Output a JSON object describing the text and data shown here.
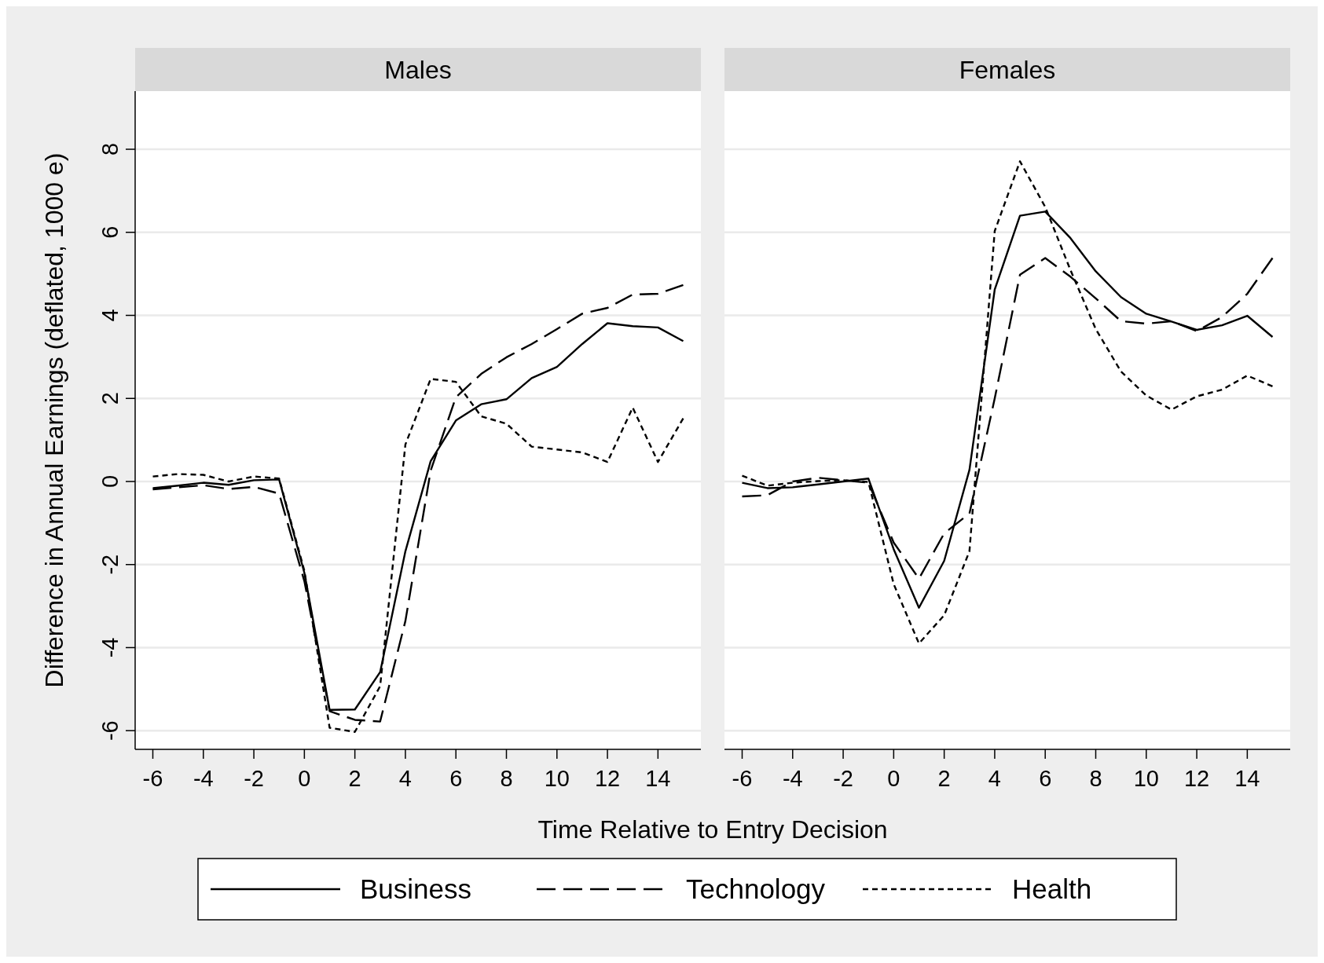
{
  "chart_data": [
    {
      "type": "line",
      "title": "Males",
      "ylabel": "Difference in Annual Earnings (deflated, 1000 e)",
      "xlabel": "Time Relative to Entry Decision",
      "x": [
        -6,
        -5,
        -4,
        -3,
        -2,
        -1,
        0,
        1,
        2,
        3,
        4,
        5,
        6,
        7,
        8,
        9,
        10,
        11,
        12,
        13,
        14,
        15
      ],
      "xlim": [
        -6.7,
        15.7
      ],
      "xticks": [
        -6,
        -4,
        -2,
        0,
        2,
        4,
        6,
        8,
        10,
        12,
        14
      ],
      "ylim": [
        -6.45,
        9.4
      ],
      "yticks": [
        -6,
        -4,
        -2,
        0,
        2,
        4,
        6,
        8
      ],
      "grid": "y",
      "legend": "bottom",
      "marker": "none",
      "series": [
        {
          "name": "Business",
          "color": "#000000",
          "line_style": "solid",
          "values": [
            -0.16,
            -0.1,
            -0.03,
            -0.08,
            0.03,
            0.05,
            -2.2,
            -5.5,
            -5.49,
            -4.59,
            -1.68,
            0.49,
            1.47,
            1.86,
            1.98,
            2.49,
            2.76,
            3.31,
            3.81,
            3.74,
            3.71,
            3.38
          ]
        },
        {
          "name": "Technology",
          "color": "#000000",
          "line_style": "dashed",
          "values": [
            -0.19,
            -0.14,
            -0.09,
            -0.18,
            -0.13,
            -0.29,
            -2.4,
            -5.53,
            -5.74,
            -5.78,
            -3.36,
            0.26,
            2.03,
            2.59,
            2.99,
            3.31,
            3.67,
            4.04,
            4.18,
            4.5,
            4.52,
            4.73
          ]
        },
        {
          "name": "Health",
          "color": "#000000",
          "line_style": "dotted",
          "values": [
            0.12,
            0.18,
            0.16,
            0,
            0.12,
            0.07,
            -2.15,
            -5.93,
            -6.03,
            -4.93,
            0.89,
            2.47,
            2.4,
            1.57,
            1.39,
            0.84,
            0.77,
            0.7,
            0.47,
            1.78,
            0.47,
            1.52
          ]
        }
      ]
    },
    {
      "type": "line",
      "title": "Females",
      "x": [
        -6,
        -5,
        -4,
        -3,
        -2,
        -1,
        0,
        1,
        2,
        3,
        4,
        5,
        6,
        7,
        8,
        9,
        10,
        11,
        12,
        13,
        14,
        15
      ],
      "xlim": [
        -6.7,
        15.7
      ],
      "xticks": [
        -6,
        -4,
        -2,
        0,
        2,
        4,
        6,
        8,
        10,
        12,
        14
      ],
      "ylim": [
        -6.45,
        9.4
      ],
      "yticks": [
        -6,
        -4,
        -2,
        0,
        2,
        4,
        6,
        8
      ],
      "grid": "y",
      "marker": "none",
      "tick_labels": "x",
      "series": [
        {
          "color": "#000000",
          "line_style": "solid",
          "values": [
            -0.03,
            -0.16,
            -0.14,
            -0.07,
            0,
            0.07,
            -1.63,
            -3.04,
            -1.91,
            0.28,
            4.62,
            6.4,
            6.5,
            5.86,
            5.06,
            4.44,
            4.04,
            3.85,
            3.65,
            3.76,
            3.99,
            3.48
          ]
        },
        {
          "color": "#000000",
          "line_style": "dashed",
          "values": [
            -0.36,
            -0.33,
            0,
            0.09,
            0.03,
            -0.03,
            -1.47,
            -2.34,
            -1.25,
            -0.77,
            2.0,
            4.98,
            5.38,
            4.93,
            4.41,
            3.86,
            3.8,
            3.86,
            3.62,
            3.96,
            4.52,
            5.38
          ]
        },
        {
          "color": "#000000",
          "line_style": "dotted",
          "values": [
            0.14,
            -0.1,
            -0.03,
            0.01,
            0.03,
            -0.01,
            -2.47,
            -3.9,
            -3.22,
            -1.68,
            6.03,
            7.71,
            6.61,
            5.09,
            3.67,
            2.65,
            2.07,
            1.73,
            2.05,
            2.21,
            2.55,
            2.29
          ]
        }
      ]
    }
  ]
}
